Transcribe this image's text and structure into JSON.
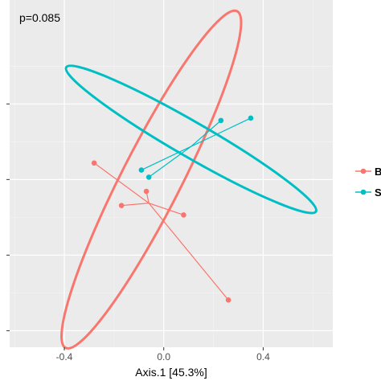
{
  "chart_data": {
    "type": "scatter",
    "title": "",
    "xlabel": "Axis.1   [45.3%]",
    "ylabel": "",
    "annotation": "p=0.085",
    "xlim": [
      -0.62,
      0.68
    ],
    "ylim": [
      -0.73,
      0.74
    ],
    "x_ticks": [
      -0.4,
      0.0,
      0.4
    ],
    "x_tick_labels": [
      "-0.4",
      "0.0",
      "0.4"
    ],
    "y_ticks": [
      -0.66,
      -0.34,
      -0.02,
      0.3
    ],
    "grid": true,
    "legend_position": "right",
    "series": [
      {
        "name": "B",
        "color": "#F8766D",
        "points": [
          {
            "x": -0.28,
            "y": 0.05
          },
          {
            "x": -0.17,
            "y": -0.13
          },
          {
            "x": -0.07,
            "y": -0.07
          },
          {
            "x": 0.08,
            "y": -0.17
          },
          {
            "x": 0.26,
            "y": -0.53
          }
        ],
        "centroid": {
          "x": -0.06,
          "y": -0.12
        },
        "ellipse": {
          "cx": -0.05,
          "cy": -0.02,
          "rx": 0.76,
          "ry": 0.12,
          "angle_deg": -63
        }
      },
      {
        "name": "S",
        "color": "#00BFC4",
        "points": [
          {
            "x": -0.09,
            "y": 0.02
          },
          {
            "x": -0.06,
            "y": -0.01
          },
          {
            "x": 0.23,
            "y": 0.23
          },
          {
            "x": 0.35,
            "y": 0.24
          }
        ],
        "centroid": {
          "x": 0.11,
          "y": 0.12
        },
        "ellipse": {
          "cx": 0.11,
          "cy": 0.15,
          "rx": 0.58,
          "ry": 0.07,
          "angle_deg": 30
        }
      }
    ]
  }
}
